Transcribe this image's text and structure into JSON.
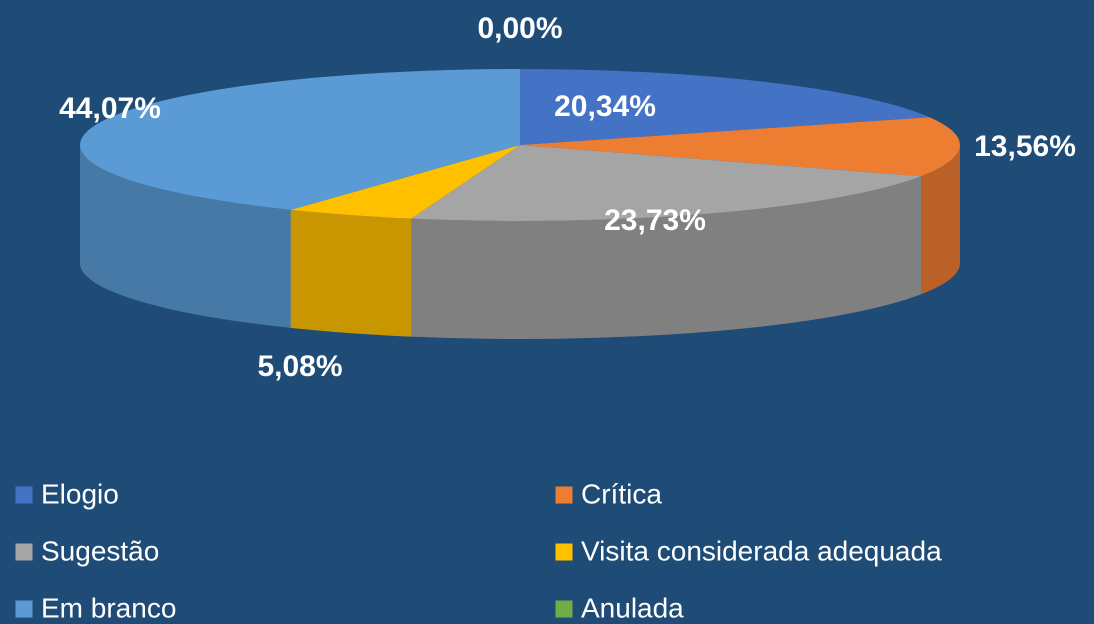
{
  "chart_data": {
    "type": "pie",
    "categories": [
      "Elogio",
      "Crítica",
      "Sugestão",
      "Visita considerada adequada",
      "Em branco",
      "Anulada"
    ],
    "values": [
      20.34,
      13.56,
      23.73,
      5.08,
      44.07,
      0.0
    ],
    "value_labels": [
      "20,34%",
      "13,56%",
      "23,73%",
      "5,08%",
      "44,07%",
      "0,00%"
    ],
    "colors": [
      "#4472c4",
      "#ed7d31",
      "#a5a5a5",
      "#ffc000",
      "#5b9bd5",
      "#70ad47"
    ],
    "legend": "bottom"
  }
}
